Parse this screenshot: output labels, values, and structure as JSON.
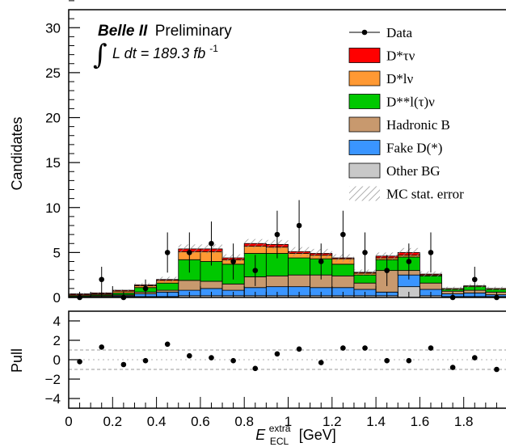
{
  "chart_data": [
    {
      "type": "histogram-stacked",
      "experiment": "Belle II",
      "status": "Preliminary",
      "lumi_prefix": "L dt = 189.3 fb",
      "lumi_exponent": "-1",
      "ylabel": "Candidates",
      "ylim": [
        0,
        32
      ],
      "yticks": [
        0,
        5,
        10,
        15,
        20,
        25,
        30
      ],
      "xlim": [
        0,
        2.0
      ],
      "bins": [
        0.05,
        0.15,
        0.25,
        0.35,
        0.45,
        0.55,
        0.65,
        0.75,
        0.85,
        0.95,
        1.05,
        1.15,
        1.25,
        1.35,
        1.45,
        1.55,
        1.65,
        1.75,
        1.85,
        1.95
      ],
      "series": [
        {
          "name": "Other BG",
          "color": "#c8c8c8",
          "values": [
            0.1,
            0.1,
            0.1,
            0.1,
            0.1,
            0.2,
            0.2,
            0.2,
            0.2,
            0.2,
            0.2,
            0.2,
            0.2,
            0.2,
            0.2,
            1.2,
            0.2,
            0.1,
            0.1,
            0.1
          ]
        },
        {
          "name": "Fake D(*)",
          "color": "#3a95ff",
          "values": [
            0.0,
            0.0,
            0.1,
            0.3,
            0.5,
            0.6,
            0.8,
            0.6,
            0.9,
            1.0,
            1.0,
            0.9,
            0.9,
            0.7,
            0.4,
            1.3,
            0.7,
            0.3,
            0.4,
            0.2
          ]
        },
        {
          "name": "Hadronic B",
          "color": "#c8996e",
          "values": [
            0.0,
            0.1,
            0.1,
            0.2,
            0.2,
            1.1,
            0.8,
            0.7,
            1.2,
            1.2,
            1.3,
            1.4,
            1.3,
            0.7,
            2.4,
            0.5,
            0.7,
            0.3,
            0.3,
            0.3
          ]
        },
        {
          "name": "D**l(tau)nu",
          "color": "#00c800",
          "values": [
            0.1,
            0.1,
            0.2,
            0.5,
            0.8,
            2.3,
            2.2,
            2.2,
            2.6,
            2.5,
            1.9,
            1.8,
            1.3,
            0.9,
            1.2,
            1.5,
            0.8,
            0.2,
            0.4,
            0.3
          ]
        },
        {
          "name": "D*lnu",
          "color": "#ff9933",
          "values": [
            0.1,
            0.1,
            0.2,
            0.2,
            0.3,
            0.9,
            1.1,
            0.5,
            0.8,
            0.7,
            0.5,
            0.4,
            0.6,
            0.2,
            0.2,
            0.2,
            0.1,
            0.1,
            0.1,
            0.1
          ]
        },
        {
          "name": "D*taunu",
          "color": "#ff0000",
          "values": [
            0.1,
            0.1,
            0.1,
            0.1,
            0.1,
            0.3,
            0.3,
            0.2,
            0.3,
            0.3,
            0.2,
            0.2,
            0.1,
            0.1,
            0.2,
            0.3,
            0.1,
            0.0,
            0.0,
            0.0
          ]
        }
      ],
      "mc_stat_error": [
        0.1,
        0.1,
        0.1,
        0.2,
        0.3,
        0.5,
        0.5,
        0.4,
        0.5,
        0.5,
        0.5,
        0.5,
        0.4,
        0.3,
        0.4,
        0.5,
        0.3,
        0.2,
        0.2,
        0.2
      ],
      "data": [
        0,
        2,
        0,
        1,
        5,
        5,
        6,
        4,
        3,
        7,
        8,
        4,
        7,
        5,
        3,
        4,
        5,
        0,
        2,
        0
      ],
      "legend": {
        "placement": "top-right",
        "entries": [
          {
            "label": "Data",
            "kind": "marker"
          },
          {
            "label": "D*τν",
            "kind": "box",
            "color": "#ff0000"
          },
          {
            "label": "D*lν",
            "kind": "box",
            "color": "#ff9933"
          },
          {
            "label": "D**l(τ)ν",
            "kind": "box",
            "color": "#00c800"
          },
          {
            "label": "Hadronic B",
            "kind": "box",
            "color": "#c8996e"
          },
          {
            "label": "Fake D(*)",
            "kind": "box",
            "color": "#3a95ff"
          },
          {
            "label": "Other BG",
            "kind": "box",
            "color": "#c8c8c8"
          },
          {
            "label": "MC stat. error",
            "kind": "hatch"
          }
        ]
      }
    },
    {
      "type": "scatter",
      "ylabel": "Pull",
      "ylim": [
        -5,
        5
      ],
      "yticks": [
        -4,
        -2,
        0,
        2,
        4
      ],
      "reference_lines": [
        -1,
        1
      ],
      "xlim": [
        0,
        2.0
      ],
      "xticks": [
        0,
        0.2,
        0.4,
        0.6,
        0.8,
        1,
        1.2,
        1.4,
        1.6,
        1.8
      ],
      "xlabel_main": "E",
      "xlabel_sup": "extra",
      "xlabel_sub": "ECL",
      "xlabel_unit": "[GeV]",
      "x": [
        0.05,
        0.15,
        0.25,
        0.35,
        0.45,
        0.55,
        0.65,
        0.75,
        0.85,
        0.95,
        1.05,
        1.15,
        1.25,
        1.35,
        1.45,
        1.55,
        1.65,
        1.75,
        1.85,
        1.95
      ],
      "values": [
        -0.2,
        1.3,
        -0.5,
        -0.1,
        1.6,
        0.4,
        0.2,
        -0.1,
        -0.9,
        0.6,
        1.1,
        -0.3,
        1.2,
        1.2,
        -0.1,
        -0.1,
        1.2,
        -0.8,
        0.2,
        -1.0
      ]
    }
  ]
}
